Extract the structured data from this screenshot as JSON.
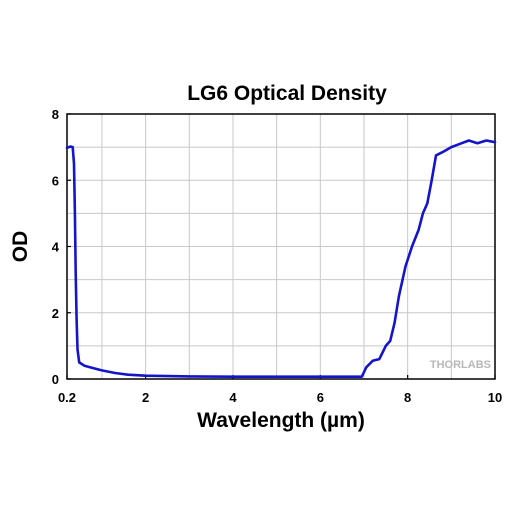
{
  "chart_data": {
    "type": "line",
    "title": "LG6 Optical Density",
    "xlabel": "Wavelength (µm)",
    "ylabel": "OD",
    "xlim": [
      0.2,
      10
    ],
    "ylim": [
      0,
      8
    ],
    "x_ticks": [
      0.2,
      2,
      4,
      6,
      8,
      10
    ],
    "x_tick_labels": [
      "0.2",
      "2",
      "4",
      "6",
      "8",
      "10"
    ],
    "y_ticks": [
      0,
      2,
      4,
      6,
      8
    ],
    "y_tick_labels": [
      "0",
      "2",
      "4",
      "6",
      "8"
    ],
    "x_minor_grid": [
      1,
      3,
      5,
      7,
      9
    ],
    "y_minor_grid": [
      1,
      3,
      5,
      7
    ],
    "grid": true,
    "watermark": "THORLABS",
    "series": [
      {
        "color": "#1515c8",
        "points": [
          [
            0.2,
            6.98
          ],
          [
            0.28,
            7.02
          ],
          [
            0.33,
            7.0
          ],
          [
            0.36,
            6.5
          ],
          [
            0.38,
            5.0
          ],
          [
            0.4,
            3.2
          ],
          [
            0.42,
            1.8
          ],
          [
            0.44,
            0.9
          ],
          [
            0.48,
            0.5
          ],
          [
            0.6,
            0.4
          ],
          [
            0.8,
            0.33
          ],
          [
            1.0,
            0.26
          ],
          [
            1.3,
            0.18
          ],
          [
            1.6,
            0.13
          ],
          [
            2.0,
            0.1
          ],
          [
            3.0,
            0.08
          ],
          [
            4.0,
            0.07
          ],
          [
            5.0,
            0.07
          ],
          [
            6.0,
            0.07
          ],
          [
            6.95,
            0.07
          ],
          [
            7.05,
            0.35
          ],
          [
            7.2,
            0.55
          ],
          [
            7.35,
            0.6
          ],
          [
            7.5,
            1.0
          ],
          [
            7.6,
            1.15
          ],
          [
            7.7,
            1.7
          ],
          [
            7.8,
            2.5
          ],
          [
            7.95,
            3.4
          ],
          [
            8.1,
            4.0
          ],
          [
            8.25,
            4.5
          ],
          [
            8.35,
            5.0
          ],
          [
            8.45,
            5.3
          ],
          [
            8.55,
            6.0
          ],
          [
            8.65,
            6.75
          ],
          [
            8.8,
            6.85
          ],
          [
            9.0,
            7.0
          ],
          [
            9.2,
            7.1
          ],
          [
            9.4,
            7.2
          ],
          [
            9.6,
            7.12
          ],
          [
            9.8,
            7.2
          ],
          [
            10.0,
            7.15
          ]
        ]
      }
    ]
  }
}
